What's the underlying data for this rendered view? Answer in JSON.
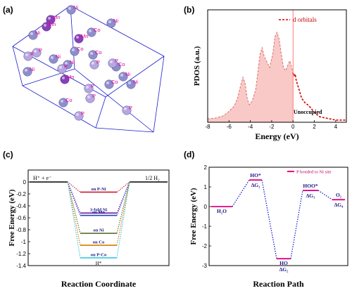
{
  "colors": {
    "axis": "#000000",
    "crystal_edge": "#1c1cd0",
    "atom_ni": "#8e8ecf",
    "atom_mn": "#8a3fb8",
    "atom_label": "#e0009b",
    "pdos_fill": "#f8c9c6",
    "pdos_line": "#e06c6c",
    "pdos_dorb": "#d40000",
    "guide_red": "#ff5a5a",
    "path_level": "#e6007e",
    "path_dots": "#1b1bd6"
  },
  "panels": {
    "a": {
      "label": "(a)"
    },
    "b": {
      "label": "(b)"
    },
    "c": {
      "label": "(c)"
    },
    "d": {
      "label": "(d)"
    }
  },
  "crystal": {
    "atom_labels": [
      "Mn",
      "Ni",
      "Co",
      "Ni",
      "Mn",
      "Ni",
      "Mn",
      "P",
      "Ni",
      "P",
      "Ni",
      "Co",
      "Mn",
      "Co",
      "Co",
      "P",
      "P",
      "Ni",
      "P",
      "Co",
      "P",
      "Ni",
      "Co",
      "P",
      "Ni",
      "P",
      "P"
    ]
  },
  "chart_data": [
    {
      "type": "area",
      "panel": "b",
      "xlabel": "Energy (eV)",
      "ylabel": "PDOS (a.u.)",
      "xlim": [
        -8,
        5
      ],
      "xticks": [
        -8,
        -6,
        -4,
        -2,
        0,
        2,
        4
      ],
      "legend": {
        "entries": [
          "d orbitals"
        ],
        "position": "top-right",
        "style": "dashed"
      },
      "annotations": [
        "Unoccupied"
      ],
      "vline_x": 0,
      "series": [
        {
          "name": "d orbitals",
          "x": [
            -8,
            -7.2,
            -6.5,
            -6.0,
            -5.5,
            -5.2,
            -4.9,
            -4.7,
            -4.5,
            -4.3,
            -4.1,
            -3.8,
            -3.5,
            -3.3,
            -3.1,
            -2.9,
            -2.7,
            -2.4,
            -2.2,
            -1.9,
            -1.7,
            -1.5,
            -1.3,
            -1.1,
            -0.9,
            -0.7,
            -0.5,
            -0.3,
            -0.1,
            0.0,
            0.1,
            0.2,
            0.3,
            0.5,
            0.8,
            1.1,
            1.5,
            2.0,
            2.5,
            3.0,
            3.5,
            4.0,
            4.5,
            5.0
          ],
          "y": [
            0.03,
            0.04,
            0.06,
            0.1,
            0.15,
            0.22,
            0.34,
            0.41,
            0.36,
            0.22,
            0.16,
            0.2,
            0.3,
            0.45,
            0.62,
            0.68,
            0.6,
            0.54,
            0.5,
            0.62,
            0.78,
            0.82,
            0.76,
            0.62,
            0.5,
            0.47,
            0.52,
            0.56,
            0.49,
            0.45,
            0.42,
            0.44,
            0.38,
            0.32,
            0.22,
            0.18,
            0.15,
            0.09,
            0.05,
            0.04,
            0.03,
            0.02,
            0.02,
            0.02
          ]
        }
      ]
    },
    {
      "type": "line",
      "panel": "c",
      "xlabel": "Reaction Coordinate",
      "ylabel": "Free Energy (eV)",
      "ylim": [
        -1.4,
        0.2
      ],
      "yticks": [
        0.0,
        -0.2,
        -0.4,
        -0.6,
        -0.8,
        -1.0,
        -1.2,
        -1.4
      ],
      "start_label": "H⁺ + e⁻",
      "end_label": "1/2 H₂",
      "intermediate_label": "H*",
      "series": [
        {
          "name": "on P-Ni",
          "value": -0.17,
          "color": "#d0152b"
        },
        {
          "name": "3-fold Ni",
          "value": -0.52,
          "color": "#7a1fa2"
        },
        {
          "name": "on Mn",
          "value": -0.56,
          "color": "#1f3fbf"
        },
        {
          "name": "on Ni",
          "value": -0.86,
          "color": "#5c6e2a"
        },
        {
          "name": "on Co",
          "value": -1.06,
          "color": "#d97a00"
        },
        {
          "name": "on P-Co",
          "value": -1.27,
          "color": "#38c8e8"
        }
      ]
    },
    {
      "type": "line",
      "panel": "d",
      "xlabel": "Reaction Path",
      "ylabel": "Free Energy (eV)",
      "ylim": [
        -3,
        2
      ],
      "yticks": [
        2,
        1,
        0,
        -1,
        -2,
        -3
      ],
      "legend": {
        "entries": [
          "P bonded to Ni site"
        ],
        "position": "top-right"
      },
      "steps": [
        {
          "label": "H₂O",
          "value": 0.0
        },
        {
          "label": "HO*",
          "value": 1.35,
          "delta": "ΔG₁"
        },
        {
          "label": "HO",
          "value": -2.65,
          "delta": "ΔG₂"
        },
        {
          "label": "HOO*",
          "value": 0.82,
          "delta": "ΔG₃"
        },
        {
          "label": "O₂",
          "value": 0.35,
          "delta": "ΔG₄"
        }
      ]
    }
  ]
}
